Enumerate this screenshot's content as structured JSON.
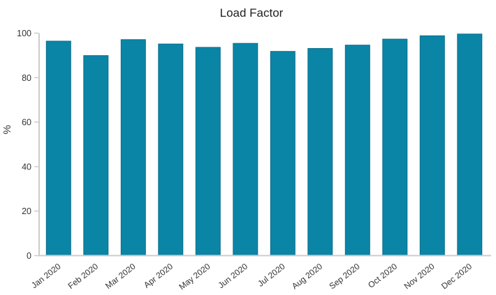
{
  "chart_data": {
    "type": "bar",
    "title": "Load Factor",
    "xlabel": "",
    "ylabel": "%",
    "categories": [
      "Jan 2020",
      "Feb 2020",
      "Mar 2020",
      "Apr 2020",
      "May 2020",
      "Jun 2020",
      "Jul 2020",
      "Aug 2020",
      "Sep 2020",
      "Oct 2020",
      "Nov 2020",
      "Dec 2020"
    ],
    "values": [
      96.4,
      89.9,
      97.1,
      95.1,
      93.6,
      95.4,
      91.8,
      93.1,
      94.6,
      97.3,
      98.8,
      99.6
    ],
    "ylim": [
      0,
      100
    ],
    "yticks": [
      0,
      20,
      40,
      60,
      80,
      100
    ],
    "grid": false,
    "legend": "none",
    "x_label_rotation_deg": -38,
    "colors": {
      "bar_fill": "#0a85a6",
      "bar_border": "#0b6e8a",
      "axis_line": "#cccccc",
      "tick_text": "#333333",
      "title_text": "#212121"
    }
  }
}
